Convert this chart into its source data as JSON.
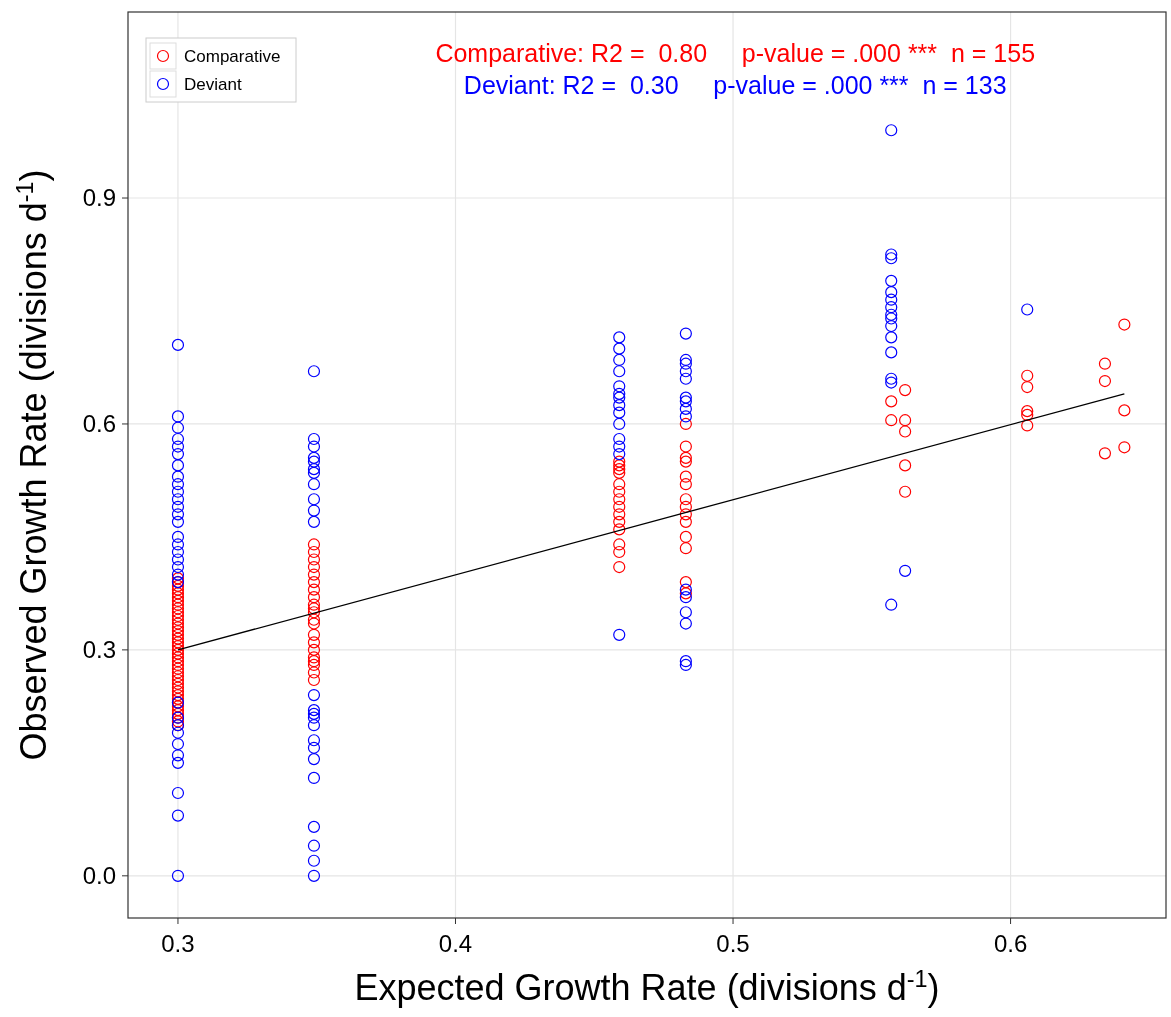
{
  "chart_data": {
    "type": "scatter",
    "xlabel": "Expected Growth Rate (divisions d$^{-1}$)",
    "ylabel": "Observed Growth Rate (divisions d$^{-1}$)",
    "xlim": [
      0.282,
      0.656
    ],
    "xticks": [
      0.3,
      0.4,
      0.5,
      0.6
    ],
    "ylim": [
      -0.056,
      1.147
    ],
    "yticks": [
      {
        "value": 0,
        "label": "0.0"
      },
      0.3,
      0.6,
      0.9
    ],
    "grid": true,
    "legend": "top left",
    "marker": "circle",
    "annotations": [
      "Comparative: R2 =  0.80     p-value = .000 ***  n = 155",
      "Deviant: R2 =  0.30     p-value = .000 ***  n = 133"
    ],
    "series": [
      {
        "name": "Comparative",
        "color": "#ff0000",
        "x": [
          0.3,
          0.3,
          0.3,
          0.3,
          0.3,
          0.3,
          0.3,
          0.3,
          0.3,
          0.3,
          0.3,
          0.3,
          0.3,
          0.3,
          0.3,
          0.3,
          0.3,
          0.3,
          0.3,
          0.3,
          0.3,
          0.3,
          0.3,
          0.3,
          0.3,
          0.3,
          0.3,
          0.3,
          0.3,
          0.3,
          0.3,
          0.3,
          0.3,
          0.3,
          0.3,
          0.3,
          0.3,
          0.3,
          0.3,
          0.3,
          0.349,
          0.349,
          0.349,
          0.349,
          0.349,
          0.349,
          0.349,
          0.349,
          0.349,
          0.349,
          0.349,
          0.349,
          0.349,
          0.349,
          0.349,
          0.349,
          0.349,
          0.349,
          0.349,
          0.349,
          0.349,
          0.459,
          0.459,
          0.459,
          0.459,
          0.459,
          0.459,
          0.459,
          0.459,
          0.459,
          0.459,
          0.459,
          0.459,
          0.459,
          0.459,
          0.483,
          0.483,
          0.483,
          0.483,
          0.483,
          0.483,
          0.483,
          0.483,
          0.483,
          0.483,
          0.483,
          0.483,
          0.483,
          0.483,
          0.557,
          0.557,
          0.562,
          0.562,
          0.562,
          0.562,
          0.562,
          0.606,
          0.606,
          0.606,
          0.606,
          0.606,
          0.634,
          0.634,
          0.634,
          0.641,
          0.641,
          0.641
        ],
        "values": [
          0.2,
          0.205,
          0.21,
          0.215,
          0.22,
          0.225,
          0.23,
          0.235,
          0.24,
          0.245,
          0.25,
          0.255,
          0.26,
          0.265,
          0.27,
          0.275,
          0.28,
          0.285,
          0.29,
          0.295,
          0.3,
          0.305,
          0.31,
          0.315,
          0.32,
          0.325,
          0.33,
          0.335,
          0.34,
          0.345,
          0.35,
          0.355,
          0.36,
          0.365,
          0.37,
          0.375,
          0.38,
          0.385,
          0.39,
          0.395,
          0.44,
          0.43,
          0.42,
          0.41,
          0.4,
          0.39,
          0.38,
          0.37,
          0.36,
          0.355,
          0.35,
          0.34,
          0.335,
          0.32,
          0.31,
          0.3,
          0.29,
          0.285,
          0.28,
          0.27,
          0.26,
          0.55,
          0.545,
          0.54,
          0.535,
          0.52,
          0.51,
          0.5,
          0.49,
          0.48,
          0.47,
          0.46,
          0.44,
          0.43,
          0.41,
          0.6,
          0.57,
          0.555,
          0.55,
          0.53,
          0.52,
          0.5,
          0.49,
          0.48,
          0.47,
          0.45,
          0.435,
          0.39,
          0.375,
          0.63,
          0.605,
          0.645,
          0.605,
          0.59,
          0.545,
          0.51,
          0.664,
          0.649,
          0.617,
          0.612,
          0.598,
          0.68,
          0.657,
          0.561,
          0.732,
          0.618,
          0.569
        ]
      },
      {
        "name": "Deviant",
        "color": "#0000ff",
        "x": [
          0.3,
          0.3,
          0.3,
          0.3,
          0.3,
          0.3,
          0.3,
          0.3,
          0.3,
          0.3,
          0.3,
          0.3,
          0.3,
          0.3,
          0.3,
          0.3,
          0.3,
          0.3,
          0.3,
          0.3,
          0.3,
          0.3,
          0.3,
          0.3,
          0.3,
          0.3,
          0.3,
          0.3,
          0.3,
          0.3,
          0.3,
          0.349,
          0.349,
          0.349,
          0.349,
          0.349,
          0.349,
          0.349,
          0.349,
          0.349,
          0.349,
          0.349,
          0.349,
          0.349,
          0.349,
          0.349,
          0.349,
          0.349,
          0.349,
          0.349,
          0.349,
          0.349,
          0.349,
          0.349,
          0.349,
          0.459,
          0.459,
          0.459,
          0.459,
          0.459,
          0.459,
          0.459,
          0.459,
          0.459,
          0.459,
          0.459,
          0.459,
          0.459,
          0.459,
          0.483,
          0.483,
          0.483,
          0.483,
          0.483,
          0.483,
          0.483,
          0.483,
          0.483,
          0.483,
          0.483,
          0.483,
          0.483,
          0.483,
          0.483,
          0.557,
          0.557,
          0.557,
          0.557,
          0.557,
          0.557,
          0.557,
          0.557,
          0.557,
          0.557,
          0.557,
          0.557,
          0.557,
          0.557,
          0.557,
          0.562,
          0.606
        ],
        "values": [
          0.705,
          0.61,
          0.595,
          0.58,
          0.57,
          0.56,
          0.545,
          0.53,
          0.52,
          0.51,
          0.5,
          0.49,
          0.48,
          0.47,
          0.45,
          0.44,
          0.43,
          0.42,
          0.41,
          0.4,
          0.39,
          0.23,
          0.21,
          0.2,
          0.19,
          0.175,
          0.16,
          0.15,
          0.11,
          0.08,
          0.0,
          0.67,
          0.58,
          0.57,
          0.555,
          0.55,
          0.54,
          0.535,
          0.52,
          0.5,
          0.485,
          0.47,
          0.24,
          0.22,
          0.215,
          0.21,
          0.2,
          0.18,
          0.17,
          0.155,
          0.13,
          0.065,
          0.04,
          0.02,
          0.0,
          0.715,
          0.7,
          0.685,
          0.67,
          0.65,
          0.64,
          0.635,
          0.625,
          0.615,
          0.6,
          0.58,
          0.57,
          0.56,
          0.32,
          0.72,
          0.685,
          0.68,
          0.67,
          0.66,
          0.635,
          0.63,
          0.62,
          0.61,
          0.38,
          0.37,
          0.35,
          0.335,
          0.285,
          0.28,
          0.99,
          0.825,
          0.82,
          0.79,
          0.775,
          0.765,
          0.755,
          0.745,
          0.74,
          0.73,
          0.715,
          0.695,
          0.66,
          0.655,
          0.36,
          0.405,
          0.752
        ]
      },
      {
        "type": "line",
        "marker": "none",
        "color": "#000000",
        "x": [
          0.3,
          0.641
        ],
        "values": [
          0.3,
          0.64
        ]
      }
    ]
  }
}
